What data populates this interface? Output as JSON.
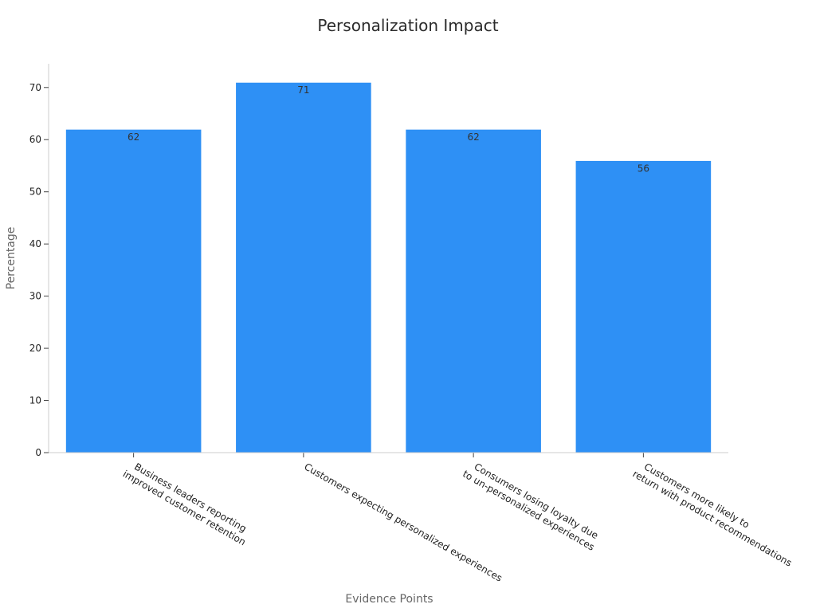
{
  "chart_data": {
    "type": "bar",
    "title": "Personalization Impact",
    "xlabel": "Evidence Points",
    "ylabel": "Percentage",
    "categories": [
      [
        "Business leaders reporting",
        "improved customer retention"
      ],
      [
        "Customers expecting personalized experiences"
      ],
      [
        "Consumers losing loyalty due",
        "to un-personalized experiences"
      ],
      [
        "Customers more likely to",
        "return with product recommendations"
      ]
    ],
    "values": [
      62,
      71,
      62,
      56
    ],
    "ylim": [
      0,
      74.55
    ],
    "yticks": [
      0,
      10,
      20,
      30,
      40,
      50,
      60,
      70
    ],
    "grid": false,
    "bar_color": "#2e90f5",
    "data_labels": true
  }
}
